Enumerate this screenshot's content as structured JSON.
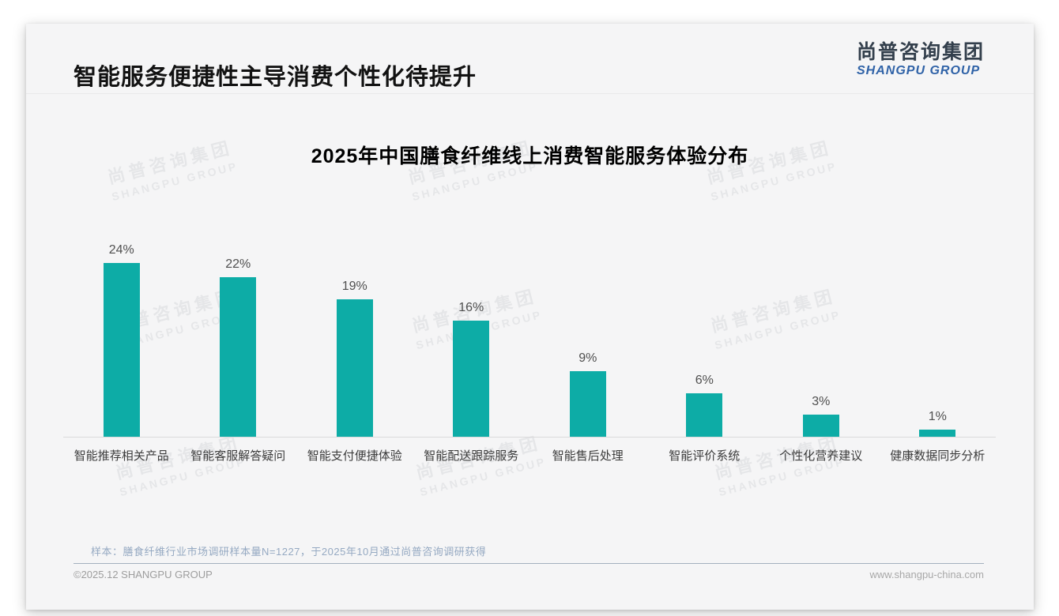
{
  "page": {
    "title": "智能服务便捷性主导消费个性化待提升",
    "logo": {
      "cn": "尚普咨询集团",
      "en": "SHANGPU GROUP"
    },
    "watermark": {
      "cn": "尚普咨询集团",
      "en": "SHANGPU GROUP"
    },
    "note": "样本：膳食纤维行业市场调研样本量N=1227，于2025年10月通过尚普咨询调研获得",
    "footer": {
      "left": "©2025.12 SHANGPU GROUP",
      "right": "www.shangpu-china.com"
    }
  },
  "chart_data": {
    "type": "bar",
    "title": "2025年中国膳食纤维线上消费智能服务体验分布",
    "categories": [
      "智能推荐相关产品",
      "智能客服解答疑问",
      "智能支付便捷体验",
      "智能配送跟踪服务",
      "智能售后处理",
      "智能评价系统",
      "个性化营养建议",
      "健康数据同步分析"
    ],
    "values": [
      24,
      22,
      19,
      16,
      9,
      6,
      3,
      1
    ],
    "value_labels": [
      "24%",
      "22%",
      "19%",
      "16%",
      "9%",
      "6%",
      "3%",
      "1%"
    ],
    "unit": "%",
    "bar_color": "#0dacA6",
    "label_color": "#4f4f4f",
    "ylim": [
      0,
      26
    ],
    "grid": false,
    "legend": false,
    "data_labels_position": "above-bars"
  }
}
